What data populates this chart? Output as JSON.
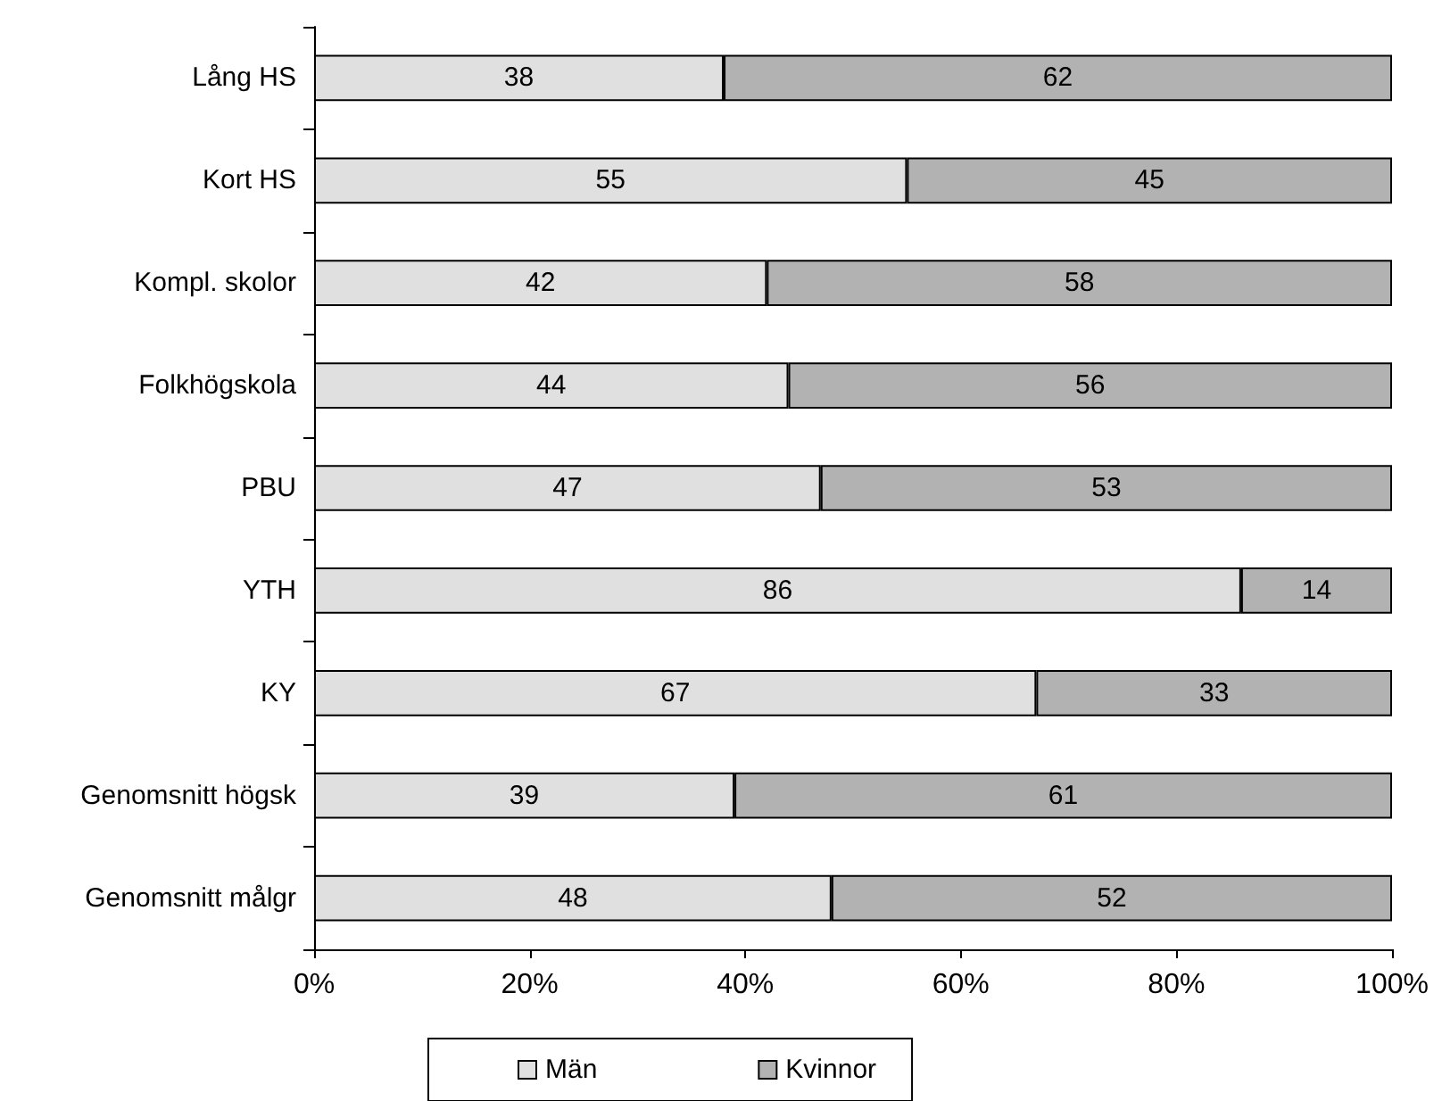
{
  "chart_data": {
    "type": "bar",
    "orientation": "horizontal",
    "stacked": true,
    "data_labels": true,
    "legend": "bottom",
    "grid": false,
    "categories": [
      "Lång HS",
      "Kort HS",
      "Kompl. skolor",
      "Folkhögskola",
      "PBU",
      "YTH",
      "KY",
      "Genomsnitt högsk",
      "Genomsnitt målgr"
    ],
    "xlim": [
      0,
      100
    ],
    "xticks": [
      {
        "value": 0,
        "label": "0%"
      },
      {
        "value": 20,
        "label": "20%"
      },
      {
        "value": 40,
        "label": "40%"
      },
      {
        "value": 60,
        "label": "60%"
      },
      {
        "value": 80,
        "label": "80%"
      },
      {
        "value": 100,
        "label": "100%"
      }
    ],
    "series": [
      {
        "name": "Män",
        "color": "#e0e0e0",
        "values": [
          38,
          55,
          42,
          44,
          47,
          86,
          67,
          39,
          48
        ]
      },
      {
        "name": "Kvinnor",
        "color": "#b2b2b2",
        "values": [
          62,
          45,
          58,
          56,
          53,
          14,
          33,
          61,
          52
        ]
      }
    ]
  }
}
